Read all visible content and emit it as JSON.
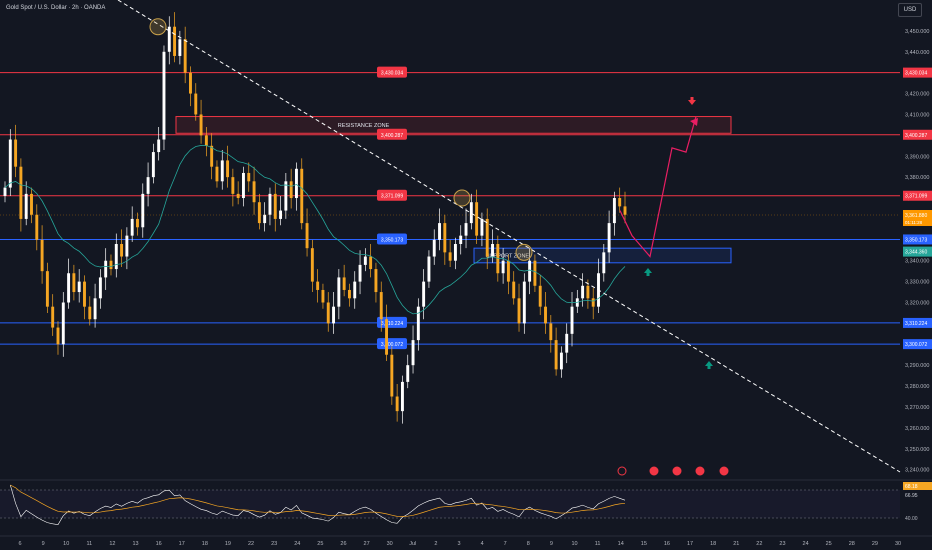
{
  "header": {
    "symbol_title": "Gold Spot / U.S. Dollar · 2h · OANDA",
    "currency_label": "USD"
  },
  "colors": {
    "background": "#131722",
    "candle_body": "#f5a623",
    "candle_up": "#ffffff",
    "ema": "#26a69a",
    "resistance": "#f23645",
    "support": "#2962ff",
    "projection": "#e91e63",
    "arrow_up": "#089981",
    "arrow_down": "#f23645",
    "circle": "#c9a14a",
    "rsi": "#ffffff",
    "rsi_ma": "#f5a623",
    "current_price": "#ff9800"
  },
  "chart_data": {
    "type": "candlestick",
    "price_axis": {
      "ticks": [
        "3,450.000",
        "3,440.000",
        "3,430.000",
        "3,420.000",
        "3,410.000",
        "3,400.000",
        "3,390.000",
        "3,380.000",
        "3,370.000",
        "3,360.000",
        "3,350.000",
        "3,340.000",
        "3,330.000",
        "3,320.000",
        "3,310.000",
        "3,300.000",
        "3,290.000",
        "3,280.000",
        "3,270.000",
        "3,260.000",
        "3,250.000",
        "3,240.000"
      ],
      "range": [
        3236,
        3460
      ]
    },
    "time_axis": {
      "ticks": [
        "6",
        "9",
        "10",
        "11",
        "12",
        "13",
        "16",
        "17",
        "18",
        "19",
        "22",
        "23",
        "24",
        "25",
        "26",
        "27",
        "30",
        "Jul",
        "2",
        "3",
        "4",
        "7",
        "8",
        "9",
        "10",
        "11",
        "14",
        "15",
        "16",
        "17",
        "18",
        "21",
        "22",
        "23",
        "24",
        "25",
        "28",
        "29",
        "30"
      ]
    },
    "levels": [
      {
        "label": "3,430.034",
        "price": 3430.034,
        "type": "resistance"
      },
      {
        "label": "3,400.287",
        "price": 3400.287,
        "type": "resistance"
      },
      {
        "label": "3,371.099",
        "price": 3371.099,
        "type": "resistance"
      },
      {
        "label": "3,350.173",
        "price": 3350.173,
        "type": "support"
      },
      {
        "label": "3,310.224",
        "price": 3310.224,
        "type": "support"
      },
      {
        "label": "3,300.072",
        "price": 3300.072,
        "type": "support"
      }
    ],
    "current_price": {
      "label": "3,361.880",
      "countdown": "01:11:28",
      "price": 3361.88
    },
    "ema_price": {
      "label": "3,344.360",
      "price": 3344.36
    },
    "zones": [
      {
        "label": "RESISTANCE ZONE",
        "from": 3401,
        "to": 3409
      },
      {
        "label": "SUPPORT ZONE",
        "from": 3339,
        "to": 3346
      }
    ],
    "closes": [
      3375,
      3398,
      3385,
      3360,
      3372,
      3362,
      3350,
      3335,
      3318,
      3308,
      3300,
      3320,
      3334,
      3325,
      3330,
      3318,
      3312,
      3322,
      3332,
      3340,
      3336,
      3348,
      3342,
      3352,
      3360,
      3356,
      3372,
      3380,
      3392,
      3398,
      3440,
      3452,
      3438,
      3446,
      3430,
      3420,
      3410,
      3400,
      3395,
      3385,
      3378,
      3388,
      3380,
      3372,
      3370,
      3382,
      3378,
      3368,
      3358,
      3362,
      3372,
      3360,
      3364,
      3378,
      3370,
      3384,
      3358,
      3346,
      3330,
      3326,
      3320,
      3310,
      3318,
      3332,
      3326,
      3322,
      3330,
      3338,
      3342,
      3336,
      3325,
      3312,
      3295,
      3275,
      3268,
      3282,
      3290,
      3302,
      3318,
      3330,
      3342,
      3350,
      3358,
      3344,
      3340,
      3348,
      3352,
      3358,
      3368,
      3352,
      3360,
      3342,
      3348,
      3334,
      3340,
      3330,
      3322,
      3310,
      3330,
      3340,
      3328,
      3318,
      3310,
      3302,
      3288,
      3296,
      3305,
      3318,
      3322,
      3328,
      3322,
      3318,
      3334,
      3344,
      3358,
      3370,
      3366,
      3362
    ],
    "ema_period": 20,
    "rsi_axis": {
      "labels": [
        "68.18",
        "66.95",
        "40.00"
      ]
    }
  }
}
